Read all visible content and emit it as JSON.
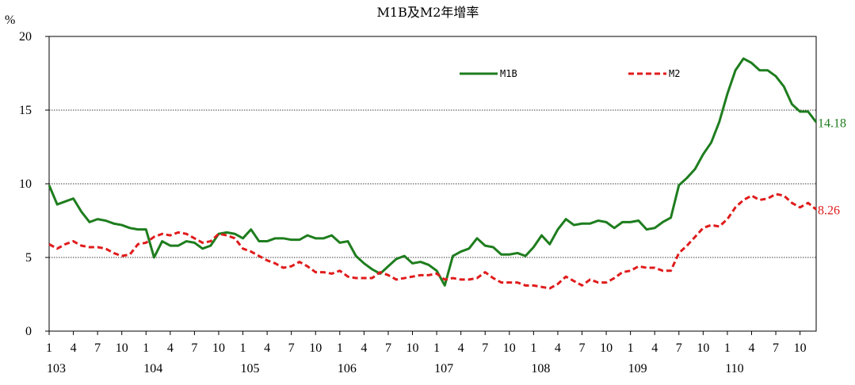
{
  "chart_data": {
    "type": "line",
    "title": "M1B及M2年增率",
    "ylabel": "%",
    "ylim": [
      0,
      20
    ],
    "yticks": [
      0,
      5,
      10,
      15,
      20
    ],
    "grid_y": [
      5,
      10,
      15
    ],
    "legend_position": "top-right",
    "x_month_ticks": [
      "1",
      "4",
      "7",
      "10",
      "1",
      "4",
      "7",
      "10",
      "1",
      "4",
      "7",
      "10",
      "1",
      "4",
      "7",
      "10",
      "1",
      "4",
      "7",
      "10",
      "1",
      "4",
      "7",
      "10",
      "1",
      "4",
      "7",
      "10",
      "1",
      "4",
      "7",
      "10",
      "1",
      "4",
      "7",
      "10",
      "1",
      "4",
      "7",
      "10"
    ],
    "x_year_labels": [
      "103",
      "104",
      "105",
      "106",
      "107",
      "108",
      "109",
      "110"
    ],
    "series": [
      {
        "name": "M1B",
        "color": "#1e7d1e",
        "dash": "solid",
        "end_label": "14.18",
        "values": [
          9.9,
          8.6,
          8.8,
          9.0,
          8.1,
          7.4,
          7.6,
          7.5,
          7.3,
          7.2,
          7.0,
          6.9,
          6.9,
          5.0,
          6.1,
          5.8,
          5.8,
          6.1,
          6.0,
          5.6,
          5.8,
          6.6,
          6.7,
          6.6,
          6.3,
          6.9,
          6.1,
          6.1,
          6.3,
          6.3,
          6.2,
          6.2,
          6.5,
          6.3,
          6.3,
          6.5,
          6.0,
          6.1,
          5.1,
          4.6,
          4.2,
          3.9,
          4.4,
          4.9,
          5.1,
          4.6,
          4.7,
          4.5,
          4.1,
          3.1,
          5.1,
          5.4,
          5.6,
          6.3,
          5.8,
          5.7,
          5.2,
          5.2,
          5.3,
          5.1,
          5.7,
          6.5,
          5.9,
          6.9,
          7.6,
          7.2,
          7.3,
          7.3,
          7.5,
          7.4,
          7.0,
          7.4,
          7.4,
          7.5,
          6.9,
          7.0,
          7.4,
          7.7,
          9.9,
          10.4,
          11.0,
          12.0,
          12.8,
          14.2,
          16.1,
          17.7,
          18.5,
          18.2,
          17.7,
          17.7,
          17.3,
          16.6,
          15.4,
          14.9,
          14.9,
          14.18
        ]
      },
      {
        "name": "M2",
        "color": "#e01b1b",
        "dash": "dashed",
        "end_label": "8.26",
        "values": [
          5.9,
          5.6,
          5.9,
          6.1,
          5.8,
          5.7,
          5.7,
          5.6,
          5.3,
          5.1,
          5.2,
          5.9,
          6.0,
          6.4,
          6.6,
          6.5,
          6.7,
          6.6,
          6.3,
          6.0,
          6.1,
          6.6,
          6.5,
          6.3,
          5.6,
          5.4,
          5.1,
          4.8,
          4.6,
          4.3,
          4.4,
          4.7,
          4.4,
          4.0,
          4.0,
          3.9,
          4.1,
          3.7,
          3.6,
          3.6,
          3.6,
          4.0,
          3.8,
          3.5,
          3.6,
          3.7,
          3.8,
          3.8,
          3.9,
          3.5,
          3.6,
          3.5,
          3.5,
          3.6,
          4.0,
          3.6,
          3.3,
          3.3,
          3.3,
          3.1,
          3.1,
          3.0,
          2.9,
          3.2,
          3.7,
          3.4,
          3.1,
          3.5,
          3.3,
          3.3,
          3.6,
          4.0,
          4.1,
          4.4,
          4.3,
          4.3,
          4.1,
          4.1,
          5.3,
          5.8,
          6.4,
          7.0,
          7.2,
          7.1,
          7.6,
          8.4,
          8.9,
          9.2,
          8.9,
          9.0,
          9.3,
          9.2,
          8.7,
          8.4,
          8.7,
          8.26
        ]
      }
    ]
  }
}
